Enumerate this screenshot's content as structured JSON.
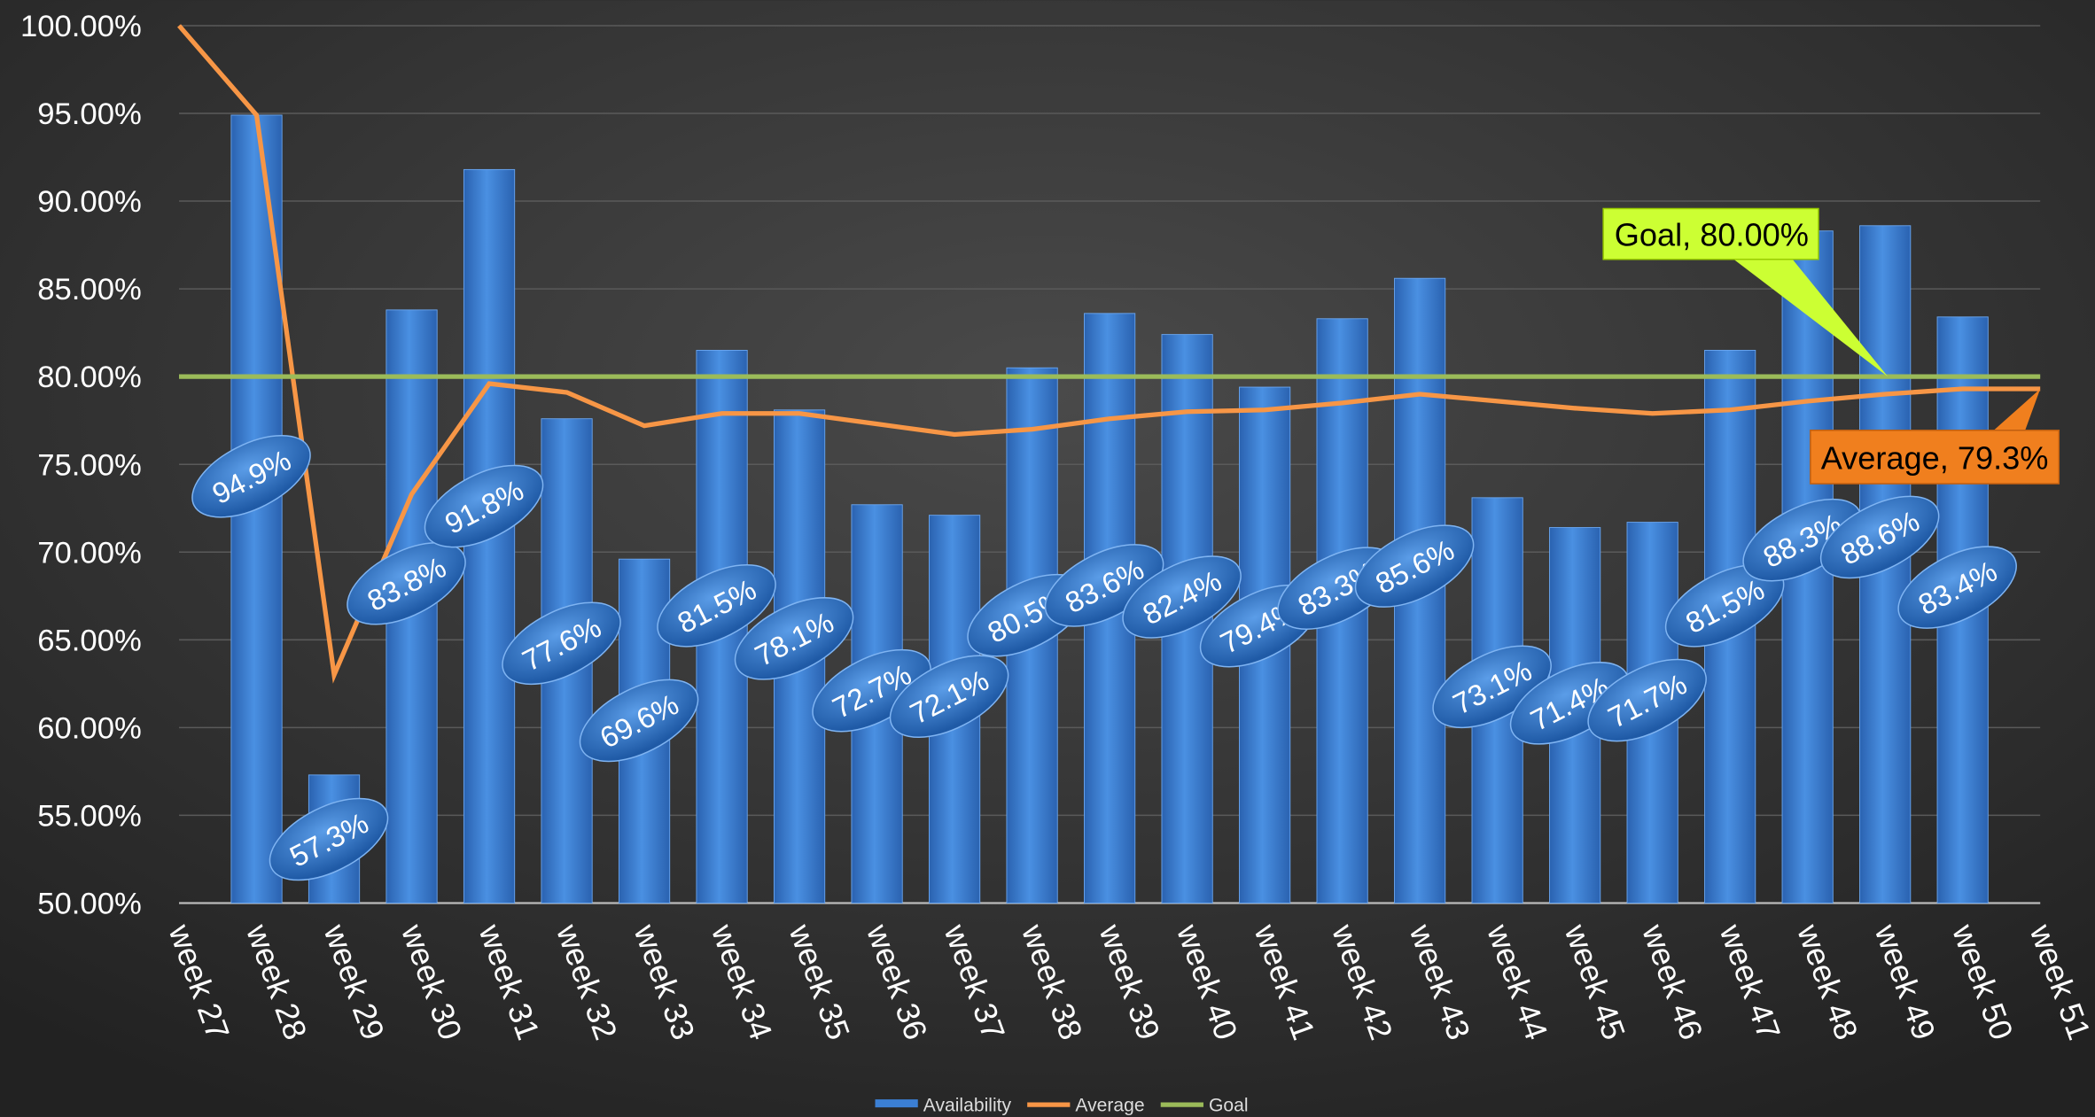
{
  "chart_data": {
    "type": "bar",
    "categories": [
      "week 27",
      "week 28",
      "week 29",
      "week 30",
      "week 31",
      "week 32",
      "week 33",
      "week 34",
      "week 35",
      "week 36",
      "week 37",
      "week 38",
      "week 39",
      "week 40",
      "week 41",
      "week 42",
      "week 43",
      "week 44",
      "week 45",
      "week 46",
      "week 47",
      "week 48",
      "week 49",
      "week 50",
      "week 51"
    ],
    "series": [
      {
        "name": "Availability",
        "type": "bar",
        "color": "#3b7fd4",
        "values": [
          null,
          94.9,
          57.3,
          83.8,
          91.8,
          77.6,
          69.6,
          81.5,
          78.1,
          72.7,
          72.1,
          80.5,
          83.6,
          82.4,
          79.4,
          83.3,
          85.6,
          73.1,
          71.4,
          71.7,
          81.5,
          88.3,
          88.6,
          83.4,
          null
        ],
        "value_labels": [
          null,
          "94.9%",
          "57.3%",
          "83.8%",
          "91.8%",
          "77.6%",
          "69.6%",
          "81.5%",
          "78.1%",
          "72.7%",
          "72.1%",
          "80.5%",
          "83.6%",
          "82.4%",
          "79.4%",
          "83.3%",
          "85.6%",
          "73.1%",
          "71.4%",
          "71.7%",
          "81.5%",
          "88.3%",
          "88.6%",
          "83.4%",
          null
        ]
      },
      {
        "name": "Average",
        "type": "line",
        "color": "#f79646",
        "values": [
          100,
          94.9,
          63,
          73.3,
          79.6,
          79.1,
          77.2,
          77.9,
          77.9,
          77.3,
          76.7,
          77.0,
          77.6,
          78.0,
          78.1,
          78.5,
          79.0,
          78.6,
          78.2,
          77.9,
          78.1,
          78.6,
          79.0,
          79.3,
          79.3
        ]
      },
      {
        "name": "Goal",
        "type": "line",
        "color": "#9bbb59",
        "values": [
          80,
          80,
          80,
          80,
          80,
          80,
          80,
          80,
          80,
          80,
          80,
          80,
          80,
          80,
          80,
          80,
          80,
          80,
          80,
          80,
          80,
          80,
          80,
          80,
          80
        ]
      }
    ],
    "annotations": [
      {
        "text": "Goal, 80.00%",
        "series": 2,
        "color": "#ccff33"
      },
      {
        "text": "Average, 79.3%",
        "series": 1,
        "color": "#f07f1e"
      }
    ],
    "ylim": [
      50,
      100
    ],
    "yticks": [
      {
        "value": 50,
        "label": "50.00%"
      },
      {
        "value": 55,
        "label": "55.00%"
      },
      {
        "value": 60,
        "label": "60.00%"
      },
      {
        "value": 65,
        "label": "65.00%"
      },
      {
        "value": 70,
        "label": "70.00%"
      },
      {
        "value": 75,
        "label": "75.00%"
      },
      {
        "value": 80,
        "label": "80.00%"
      },
      {
        "value": 85,
        "label": "85.00%"
      },
      {
        "value": 90,
        "label": "90.00%"
      },
      {
        "value": 95,
        "label": "95.00%"
      },
      {
        "value": 100,
        "label": "100.00%"
      }
    ],
    "grid": true,
    "legend": "bottom"
  }
}
